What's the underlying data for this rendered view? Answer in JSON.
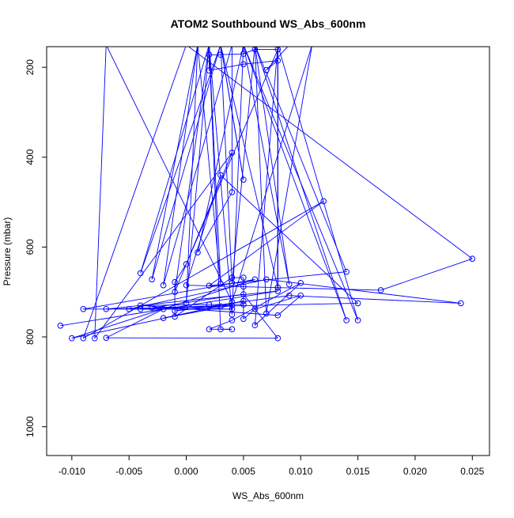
{
  "chart_data": {
    "type": "line",
    "title": "ATOM2 Southbound WS_Abs_600nm",
    "xlabel": "WS_Abs_600nm",
    "ylabel": "Pressure (mbar)",
    "xlim": [
      -0.0122,
      0.0265
    ],
    "ylim": [
      1064,
      154
    ],
    "y_axis_reversed": true,
    "xticks": [
      -0.01,
      -0.005,
      0.0,
      0.005,
      0.01,
      0.015,
      0.02,
      0.025
    ],
    "xtick_labels": [
      "-0.010",
      "-0.005",
      "0.000",
      "0.005",
      "0.010",
      "0.015",
      "0.020",
      "0.025"
    ],
    "yticks": [
      200,
      400,
      600,
      800,
      1000
    ],
    "ytick_labels": [
      "200",
      "400",
      "600",
      "800",
      "1000"
    ],
    "series_color": "#0000ff",
    "marker": "open-circle",
    "grid": false,
    "legend": "none",
    "series": [
      {
        "points": [
          {
            "x": -0.011,
            "y": 775
          },
          {
            "x": 0.008,
            "y": 698
          },
          {
            "x": -0.007,
            "y": 738
          },
          {
            "x": 0.004,
            "y": 730
          },
          {
            "x": -0.002,
            "y": 758
          },
          {
            "x": 0.005,
            "y": 720
          },
          {
            "x": -0.01,
            "y": 803
          },
          {
            "x": 0.006,
            "y": 672
          },
          {
            "x": -0.009,
            "y": 738
          },
          {
            "x": 0.004,
            "y": 738
          },
          {
            "x": -0.004,
            "y": 738
          },
          {
            "x": 0.003,
            "y": 732
          },
          {
            "x": -0.001,
            "y": 742
          },
          {
            "x": 0.009,
            "y": 708
          },
          {
            "x": 0.024,
            "y": 725
          },
          {
            "x": 0.007,
            "y": 672
          },
          {
            "x": -0.005,
            "y": 738
          },
          {
            "x": -0.002,
            "y": 738
          },
          {
            "x": -0.007,
            "y": 802
          },
          {
            "x": 0.008,
            "y": 803
          },
          {
            "x": 0.005,
            "y": 705
          },
          {
            "x": -0.003,
            "y": 735
          },
          {
            "x": 0.015,
            "y": 725
          },
          {
            "x": 0.003,
            "y": 440
          },
          {
            "x": 0.0,
            "y": 685
          },
          {
            "x": 0.017,
            "y": 696
          },
          {
            "x": 0.025,
            "y": 626
          },
          {
            "x": 0.0,
            "y": 150
          },
          {
            "x": -0.009,
            "y": 803
          },
          {
            "x": 0.012,
            "y": 498
          },
          {
            "x": 0.002,
            "y": 686
          },
          {
            "x": 0.014,
            "y": 655
          },
          {
            "x": 0.006,
            "y": 150
          },
          {
            "x": 0.007,
            "y": 748
          },
          {
            "x": 0.011,
            "y": 150
          },
          {
            "x": 0.004,
            "y": 722
          },
          {
            "x": -0.007,
            "y": 150
          },
          {
            "x": -0.008,
            "y": 803
          },
          {
            "x": 0.004,
            "y": 390
          },
          {
            "x": -0.001,
            "y": 700
          },
          {
            "x": 0.002,
            "y": 150
          },
          {
            "x": 0.003,
            "y": 682
          },
          {
            "x": 0.001,
            "y": 150
          },
          {
            "x": -0.002,
            "y": 685
          },
          {
            "x": 0.004,
            "y": 150
          },
          {
            "x": 0.004,
            "y": 478
          },
          {
            "x": 0.001,
            "y": 612
          },
          {
            "x": 0.005,
            "y": 150
          },
          {
            "x": 0.009,
            "y": 683
          },
          {
            "x": 0.006,
            "y": 150
          },
          {
            "x": 0.004,
            "y": 680
          },
          {
            "x": 0.003,
            "y": 150
          },
          {
            "x": 0.005,
            "y": 450
          },
          {
            "x": 0.003,
            "y": 150
          },
          {
            "x": 0.008,
            "y": 690
          },
          {
            "x": 0.008,
            "y": 150
          },
          {
            "x": 0.008,
            "y": 690
          },
          {
            "x": 0.008,
            "y": 150
          },
          {
            "x": 0.006,
            "y": 774
          },
          {
            "x": 0.01,
            "y": 680
          },
          {
            "x": 0.004,
            "y": 763
          },
          {
            "x": 0.002,
            "y": 783
          },
          {
            "x": 0.004,
            "y": 783
          },
          {
            "x": 0.003,
            "y": 783
          },
          {
            "x": 0.002,
            "y": 150
          },
          {
            "x": 0.0,
            "y": 725
          },
          {
            "x": 0.001,
            "y": 150
          },
          {
            "x": -0.003,
            "y": 672
          },
          {
            "x": 0.003,
            "y": 150
          },
          {
            "x": -0.004,
            "y": 658
          },
          {
            "x": 0.002,
            "y": 150
          },
          {
            "x": 0.005,
            "y": 150
          },
          {
            "x": 0.004,
            "y": 750
          },
          {
            "x": 0.002,
            "y": 150
          },
          {
            "x": 0.008,
            "y": 150
          },
          {
            "x": 0.015,
            "y": 763
          },
          {
            "x": 0.005,
            "y": 150
          },
          {
            "x": 0.014,
            "y": 763
          },
          {
            "x": 0.006,
            "y": 150
          },
          {
            "x": 0.009,
            "y": 150
          },
          {
            "x": 0.007,
            "y": 206
          },
          {
            "x": 0.008,
            "y": 185
          },
          {
            "x": 0.005,
            "y": 193
          },
          {
            "x": 0.002,
            "y": 207
          },
          {
            "x": 0.002,
            "y": 172
          },
          {
            "x": 0.003,
            "y": 172
          },
          {
            "x": 0.005,
            "y": 170
          },
          {
            "x": 0.006,
            "y": 160
          },
          {
            "x": 0.008,
            "y": 160
          },
          {
            "x": 0.0,
            "y": 638
          },
          {
            "x": -0.001,
            "y": 678
          },
          {
            "x": -0.001,
            "y": 755
          },
          {
            "x": 0.004,
            "y": 668
          },
          {
            "x": 0.005,
            "y": 668
          },
          {
            "x": 0.005,
            "y": 688
          },
          {
            "x": 0.005,
            "y": 760
          },
          {
            "x": 0.006,
            "y": 738
          },
          {
            "x": 0.01,
            "y": 708
          },
          {
            "x": 0.008,
            "y": 752
          },
          {
            "x": -0.004,
            "y": 730
          },
          {
            "x": 0.002,
            "y": 728
          },
          {
            "x": 0.005,
            "y": 728
          }
        ]
      }
    ]
  }
}
